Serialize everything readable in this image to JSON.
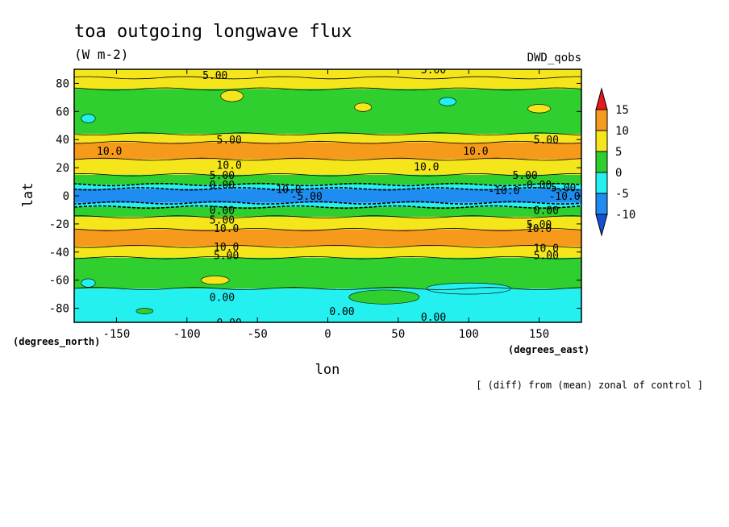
{
  "chart_data": {
    "type": "heatmap",
    "title": "toa outgoing longwave flux",
    "units": "(W m-2)",
    "model": "DWD_qobs",
    "xlabel": "lon",
    "ylabel": "lat",
    "x_units": "(degrees_east)",
    "y_units": "(degrees_north)",
    "note": "[ (diff) from (mean) zonal of control ]",
    "xlim": [
      -180,
      180
    ],
    "ylim": [
      -90,
      90
    ],
    "x_ticks": [
      -150,
      -100,
      -50,
      0,
      50,
      100,
      150
    ],
    "y_ticks": [
      80,
      60,
      40,
      20,
      0,
      -20,
      -40,
      -60,
      -80
    ],
    "colorbar": {
      "levels": [
        15,
        10,
        5,
        0,
        -5,
        -10
      ],
      "bins": [
        {
          "min": 15,
          "max": null,
          "color": "#e8181c"
        },
        {
          "min": 10,
          "max": 15,
          "color": "#f59a1b"
        },
        {
          "min": 5,
          "max": 10,
          "color": "#f5e61c"
        },
        {
          "min": 0,
          "max": 5,
          "color": "#2fcf2f"
        },
        {
          "min": -5,
          "max": 0,
          "color": "#24f0f0"
        },
        {
          "min": -10,
          "max": -5,
          "color": "#1e8cf0"
        },
        {
          "min": null,
          "max": -10,
          "color": "#1450d2"
        }
      ]
    },
    "zonal_bands": [
      {
        "lat_from": 90,
        "lat_to": 84,
        "value": 7
      },
      {
        "lat_from": 84,
        "lat_to": 76,
        "value": 7
      },
      {
        "lat_from": 76,
        "lat_to": 44,
        "value": 2
      },
      {
        "lat_from": 44,
        "lat_to": 38,
        "value": 7
      },
      {
        "lat_from": 38,
        "lat_to": 26,
        "value": 12
      },
      {
        "lat_from": 26,
        "lat_to": 15,
        "value": 7
      },
      {
        "lat_from": 15,
        "lat_to": 8,
        "value": 2
      },
      {
        "lat_from": 8,
        "lat_to": 5,
        "value": -2
      },
      {
        "lat_from": 5,
        "lat_to": -5,
        "value": -8
      },
      {
        "lat_from": -5,
        "lat_to": -8,
        "value": -2
      },
      {
        "lat_from": -8,
        "lat_to": -15,
        "value": 2
      },
      {
        "lat_from": -15,
        "lat_to": -24,
        "value": 7
      },
      {
        "lat_from": -24,
        "lat_to": -36,
        "value": 12
      },
      {
        "lat_from": -36,
        "lat_to": -44,
        "value": 7
      },
      {
        "lat_from": -44,
        "lat_to": -66,
        "value": 2
      },
      {
        "lat_from": -66,
        "lat_to": -90,
        "value": -2
      }
    ],
    "contour_labels": [
      {
        "text": "5.00",
        "lon": -80,
        "lat": 86
      },
      {
        "text": "5.00",
        "lon": 75,
        "lat": 90
      },
      {
        "text": "10.0",
        "lon": -155,
        "lat": 32
      },
      {
        "text": "5.00",
        "lon": -70,
        "lat": 40
      },
      {
        "text": "10.0",
        "lon": 105,
        "lat": 32
      },
      {
        "text": "5.00",
        "lon": 155,
        "lat": 40
      },
      {
        "text": "10.0",
        "lon": -70,
        "lat": 22
      },
      {
        "text": "10.0",
        "lon": 70,
        "lat": 21
      },
      {
        "text": "5.00",
        "lon": -75,
        "lat": 15
      },
      {
        "text": "5.00",
        "lon": 140,
        "lat": 15
      },
      {
        "text": "0.00",
        "lon": -75,
        "lat": 8
      },
      {
        "text": "0.00",
        "lon": 150,
        "lat": 8
      },
      {
        "text": "-10.0",
        "lon": -30,
        "lat": 5
      },
      {
        "text": "-5.00",
        "lon": -15,
        "lat": 0
      },
      {
        "text": "-10.0",
        "lon": 125,
        "lat": 4
      },
      {
        "text": "-5.00",
        "lon": 165,
        "lat": 6
      },
      {
        "text": "-10.0",
        "lon": 168,
        "lat": 0
      },
      {
        "text": "0.00",
        "lon": -75,
        "lat": -10
      },
      {
        "text": "0.00",
        "lon": 155,
        "lat": -10
      },
      {
        "text": "5.00",
        "lon": -75,
        "lat": -17
      },
      {
        "text": "5.00",
        "lon": 150,
        "lat": -20
      },
      {
        "text": "10.0",
        "lon": -72,
        "lat": -23
      },
      {
        "text": "10.0",
        "lon": 150,
        "lat": -23
      },
      {
        "text": "10.0",
        "lon": -72,
        "lat": -36
      },
      {
        "text": "10.0",
        "lon": 155,
        "lat": -37
      },
      {
        "text": "5.00",
        "lon": -72,
        "lat": -42
      },
      {
        "text": "5.00",
        "lon": 155,
        "lat": -42
      },
      {
        "text": "0.00",
        "lon": -75,
        "lat": -72
      },
      {
        "text": "0.00",
        "lon": 10,
        "lat": -82
      },
      {
        "text": "0.00",
        "lon": 75,
        "lat": -86
      },
      {
        "text": "0.00",
        "lon": -70,
        "lat": -90
      }
    ],
    "colorbar_labels": [
      "15",
      "10",
      "5",
      "0",
      "-5",
      "-10"
    ]
  }
}
